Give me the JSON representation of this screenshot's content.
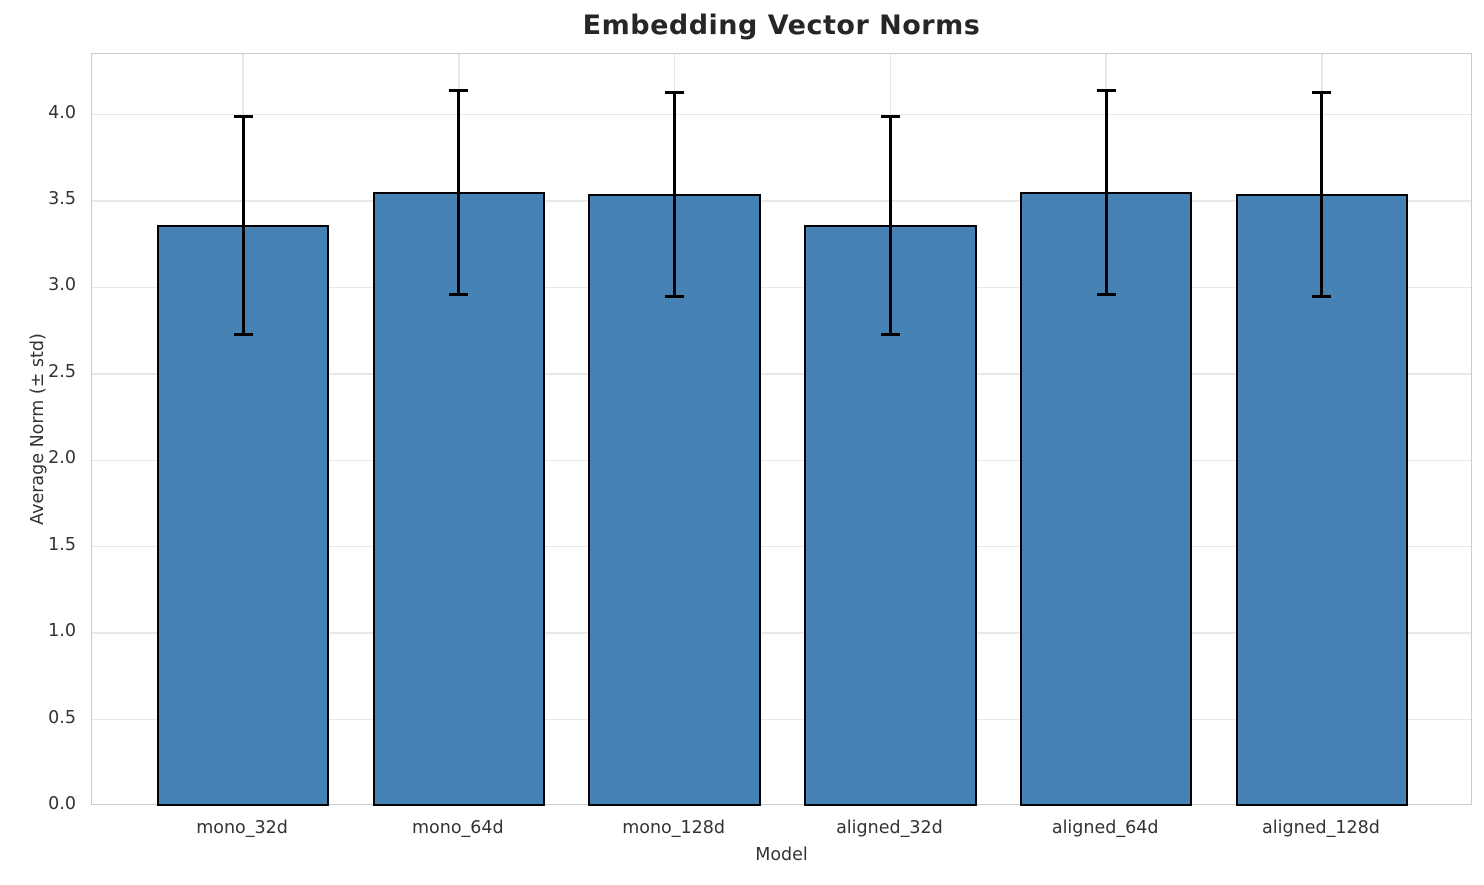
{
  "chart_data": {
    "type": "bar",
    "title": "Embedding Vector Norms",
    "xlabel": "Model",
    "ylabel": "Average Norm (± std)",
    "categories": [
      "mono_32d",
      "mono_64d",
      "mono_128d",
      "aligned_32d",
      "aligned_64d",
      "aligned_128d"
    ],
    "values": [
      3.36,
      3.55,
      3.54,
      3.36,
      3.55,
      3.54
    ],
    "errors": [
      0.63,
      0.59,
      0.59,
      0.63,
      0.59,
      0.59
    ],
    "yticks": [
      0.0,
      0.5,
      1.0,
      1.5,
      2.0,
      2.5,
      3.0,
      3.5,
      4.0
    ],
    "ylim": [
      0,
      4.35
    ],
    "grid": true,
    "legend": "none",
    "bar_color": "#4682b4",
    "bar_edge_color": "#000000",
    "error_color": "#000000",
    "grid_color": "#e8e8e8",
    "spine_color": "#cccccc",
    "text_color": "#333333",
    "title_color": "#262626"
  }
}
